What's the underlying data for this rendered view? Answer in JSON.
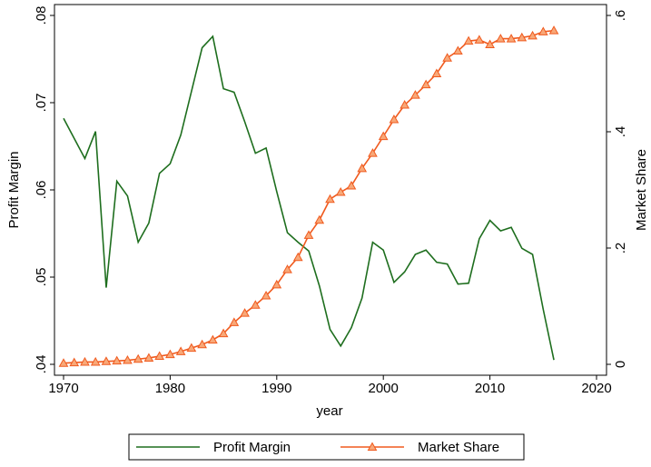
{
  "chart_data": {
    "type": "line",
    "x_label": "year",
    "y_label": "Profit Margin",
    "y2_label": "Market Share",
    "x": [
      1970,
      1971,
      1972,
      1973,
      1974,
      1975,
      1976,
      1977,
      1978,
      1979,
      1980,
      1981,
      1982,
      1983,
      1984,
      1985,
      1986,
      1987,
      1988,
      1989,
      1990,
      1991,
      1992,
      1993,
      1994,
      1995,
      1996,
      1997,
      1998,
      1999,
      2000,
      2001,
      2002,
      2003,
      2004,
      2005,
      2006,
      2007,
      2008,
      2009,
      2010,
      2011,
      2012,
      2013,
      2014,
      2015,
      2016
    ],
    "series": [
      {
        "name": "Profit Margin",
        "color": "#1e6e1e",
        "marker": "none",
        "values": [
          0.0682,
          0.0659,
          0.0636,
          0.0667,
          0.0488,
          0.061,
          0.0593,
          0.054,
          0.0562,
          0.0619,
          0.063,
          0.0663,
          0.0713,
          0.0763,
          0.0776,
          0.0716,
          0.0712,
          0.0678,
          0.0642,
          0.0648,
          0.0598,
          0.0551,
          0.054,
          0.053,
          0.049,
          0.044,
          0.0421,
          0.0442,
          0.0476,
          0.054,
          0.0531,
          0.0494,
          0.0506,
          0.0526,
          0.0531,
          0.0517,
          0.0515,
          0.0492,
          0.0493,
          0.0544,
          0.0565,
          0.0553,
          0.0557,
          0.0533,
          0.0526,
          0.0463,
          0.0405
        ]
      },
      {
        "name": "Market Share",
        "color": "#f05a1e",
        "marker": "triangle",
        "axis": "y2",
        "values": [
          0.002,
          0.003,
          0.004,
          0.004,
          0.005,
          0.006,
          0.007,
          0.009,
          0.011,
          0.014,
          0.017,
          0.022,
          0.028,
          0.034,
          0.042,
          0.053,
          0.072,
          0.088,
          0.102,
          0.118,
          0.137,
          0.163,
          0.184,
          0.222,
          0.248,
          0.284,
          0.296,
          0.307,
          0.337,
          0.363,
          0.392,
          0.421,
          0.446,
          0.463,
          0.481,
          0.5,
          0.527,
          0.539,
          0.556,
          0.558,
          0.55,
          0.56,
          0.56,
          0.562,
          0.565,
          0.572,
          0.574
        ]
      }
    ],
    "xlim": [
      1970,
      2020
    ],
    "xticks": [
      1970,
      1980,
      1990,
      2000,
      2010,
      2020
    ],
    "ylim": [
      0.04,
      0.08
    ],
    "yticks": [
      {
        "value": 0.04,
        "label": ".04"
      },
      {
        "value": 0.05,
        "label": ".05"
      },
      {
        "value": 0.06,
        "label": ".06"
      },
      {
        "value": 0.07,
        "label": ".07"
      },
      {
        "value": 0.08,
        "label": ".08"
      }
    ],
    "y2lim": [
      0,
      0.6
    ],
    "y2ticks": [
      0,
      {
        "value": 0.2,
        "label": ".2"
      },
      {
        "value": 0.4,
        "label": ".4"
      },
      {
        "value": 0.6,
        "label": ".6"
      }
    ],
    "legend": "bottom"
  }
}
